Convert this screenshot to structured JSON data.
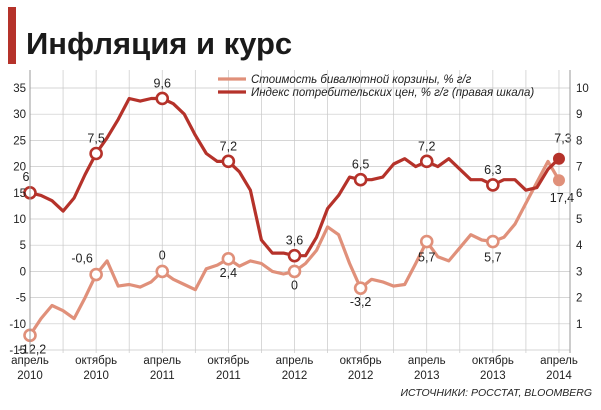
{
  "chart_data": {
    "type": "line",
    "title": "Инфляция и курс",
    "source": "ИСТОЧНИКИ: РОССТАТ, BLOOMBERG",
    "left_axis": {
      "ylim": [
        -15,
        35
      ],
      "ticks": [
        "35",
        "30",
        "25",
        "20",
        "15",
        "10",
        "5",
        "0",
        "-5",
        "-10",
        "-15"
      ]
    },
    "right_axis": {
      "ylim": [
        0,
        10
      ],
      "ticks": [
        "10",
        "9",
        "8",
        "7",
        "6",
        "5",
        "4",
        "3",
        "2",
        "1"
      ]
    },
    "x_ticks": [
      {
        "line1": "апрель",
        "line2": "2010",
        "t": 0
      },
      {
        "line1": "октябрь",
        "line2": "2010",
        "t": 6
      },
      {
        "line1": "апрель",
        "line2": "2011",
        "t": 12
      },
      {
        "line1": "октябрь",
        "line2": "2011",
        "t": 18
      },
      {
        "line1": "апрель",
        "line2": "2012",
        "t": 24
      },
      {
        "line1": "октябрь",
        "line2": "2012",
        "t": 30
      },
      {
        "line1": "апрель",
        "line2": "2013",
        "t": 36
      },
      {
        "line1": "октябрь",
        "line2": "2013",
        "t": 42
      },
      {
        "line1": "апрель",
        "line2": "2014",
        "t": 48
      }
    ],
    "series": [
      {
        "name": "Стоимость бивалютной корзины, % г/г",
        "axis": "left",
        "color": "#e0907a",
        "values": [
          -12.2,
          -9.0,
          -6.5,
          -7.5,
          -9.0,
          -5.0,
          -0.6,
          2.0,
          -2.8,
          -2.5,
          -3.0,
          -2.0,
          0.0,
          -1.5,
          -2.5,
          -3.5,
          0.5,
          1.2,
          2.4,
          1.0,
          2.0,
          1.5,
          0.0,
          -0.5,
          0.0,
          1.5,
          4.0,
          8.5,
          7.0,
          1.5,
          -3.2,
          -1.5,
          -2.0,
          -2.8,
          -2.5,
          1.5,
          5.7,
          2.8,
          2.0,
          4.5,
          7.0,
          6.0,
          5.7,
          6.5,
          9.0,
          13.0,
          17.0,
          21.0,
          17.4
        ],
        "labels": [
          {
            "i": 0,
            "text": "-12,2",
            "ring": true
          },
          {
            "i": 6,
            "text": "-0,6",
            "ring": true
          },
          {
            "i": 12,
            "text": "0",
            "ring": true
          },
          {
            "i": 18,
            "text": "2,4",
            "ring": true
          },
          {
            "i": 24,
            "text": "0",
            "ring": true
          },
          {
            "i": 30,
            "text": "-3,2",
            "ring": true
          },
          {
            "i": 36,
            "text": "5,7",
            "ring": true
          },
          {
            "i": 42,
            "text": "5,7",
            "ring": true
          },
          {
            "i": 48,
            "text": "17,4",
            "ring": false
          }
        ]
      },
      {
        "name": "Индекс потребительских цен, % г/г (правая шкала)",
        "axis": "right",
        "color": "#b5322a",
        "values": [
          6.0,
          5.9,
          5.7,
          5.3,
          5.8,
          6.7,
          7.5,
          8.1,
          8.8,
          9.6,
          9.5,
          9.6,
          9.6,
          9.4,
          9.0,
          8.2,
          7.5,
          7.2,
          7.2,
          6.8,
          6.1,
          4.2,
          3.7,
          3.7,
          3.6,
          3.6,
          4.3,
          5.4,
          5.9,
          6.6,
          6.5,
          6.5,
          6.6,
          7.1,
          7.3,
          7.0,
          7.2,
          7.0,
          7.3,
          6.9,
          6.5,
          6.5,
          6.3,
          6.5,
          6.5,
          6.1,
          6.2,
          6.9,
          7.3
        ],
        "labels": [
          {
            "i": 0,
            "text": "6",
            "ring": true
          },
          {
            "i": 6,
            "text": "7,5",
            "ring": true
          },
          {
            "i": 12,
            "text": "9,6",
            "ring": true
          },
          {
            "i": 18,
            "text": "7,2",
            "ring": true
          },
          {
            "i": 24,
            "text": "3,6",
            "ring": true
          },
          {
            "i": 30,
            "text": "6,5",
            "ring": true
          },
          {
            "i": 36,
            "text": "7,2",
            "ring": true
          },
          {
            "i": 42,
            "text": "6,3",
            "ring": true
          },
          {
            "i": 48,
            "text": "7,3",
            "ring": false
          }
        ]
      }
    ],
    "grid": true,
    "legend_placement": "top"
  }
}
